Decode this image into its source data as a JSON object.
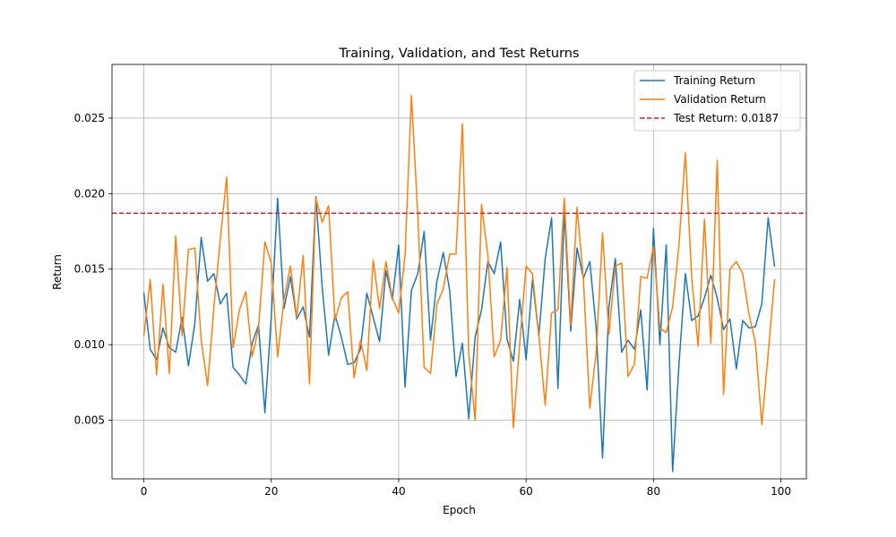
{
  "chart_data": {
    "type": "line",
    "title": "Training, Validation, and Test Returns",
    "xlabel": "Epoch",
    "ylabel": "Return",
    "xlim": [
      -5,
      104
    ],
    "ylim": [
      0.00112,
      0.02855
    ],
    "xticks": [
      0,
      20,
      40,
      60,
      80,
      100
    ],
    "xtick_labels": [
      "0",
      "20",
      "40",
      "60",
      "80",
      "100"
    ],
    "yticks": [
      0.005,
      0.01,
      0.015,
      0.02,
      0.025
    ],
    "ytick_labels": [
      "0.005",
      "0.010",
      "0.015",
      "0.020",
      "0.025"
    ],
    "grid": true,
    "legend_position": "top-right",
    "series": [
      {
        "name": "Training Return",
        "color": "#1f77b4",
        "style": "solid",
        "values": [
          0.0134,
          0.0097,
          0.009,
          0.0111,
          0.0098,
          0.0095,
          0.0118,
          0.0086,
          0.0114,
          0.0171,
          0.0142,
          0.0147,
          0.0127,
          0.0134,
          0.0085,
          0.008,
          0.0074,
          0.0101,
          0.0113,
          0.0055,
          0.0118,
          0.0197,
          0.0124,
          0.0145,
          0.0117,
          0.0125,
          0.0105,
          0.0198,
          0.0138,
          0.0093,
          0.012,
          0.0105,
          0.0087,
          0.0088,
          0.0097,
          0.0134,
          0.0118,
          0.0102,
          0.0149,
          0.013,
          0.0166,
          0.0072,
          0.0136,
          0.0147,
          0.0175,
          0.0103,
          0.0142,
          0.0161,
          0.0136,
          0.0079,
          0.0101,
          0.0051,
          0.0105,
          0.0123,
          0.0155,
          0.0147,
          0.0168,
          0.0104,
          0.0089,
          0.013,
          0.009,
          0.0143,
          0.0106,
          0.0157,
          0.0184,
          0.0071,
          0.0188,
          0.0109,
          0.0164,
          0.0144,
          0.0155,
          0.0111,
          0.0025,
          0.0125,
          0.0157,
          0.0095,
          0.0103,
          0.0097,
          0.0123,
          0.007,
          0.0177,
          0.01,
          0.0166,
          0.0016,
          0.0087,
          0.0147,
          0.0116,
          0.0119,
          0.0131,
          0.0146,
          0.0131,
          0.011,
          0.0117,
          0.0084,
          0.0116,
          0.0111,
          0.0112,
          0.0127,
          0.0184,
          0.0152
        ]
      },
      {
        "name": "Validation Return",
        "color": "#ff7f0e",
        "style": "solid",
        "values": [
          0.0106,
          0.0143,
          0.008,
          0.014,
          0.0081,
          0.0172,
          0.0106,
          0.0163,
          0.0164,
          0.0103,
          0.0073,
          0.0125,
          0.017,
          0.0211,
          0.0098,
          0.0123,
          0.0135,
          0.0092,
          0.0111,
          0.0168,
          0.0154,
          0.0092,
          0.013,
          0.0152,
          0.0118,
          0.0159,
          0.0074,
          0.0197,
          0.0181,
          0.0192,
          0.0116,
          0.0131,
          0.0135,
          0.0078,
          0.0103,
          0.0083,
          0.0156,
          0.0124,
          0.0155,
          0.0131,
          0.0121,
          0.0159,
          0.0265,
          0.0186,
          0.0085,
          0.0081,
          0.0127,
          0.0137,
          0.016,
          0.016,
          0.0246,
          0.0094,
          0.005,
          0.0193,
          0.0159,
          0.0092,
          0.0103,
          0.0151,
          0.0045,
          0.0101,
          0.0152,
          0.0147,
          0.0106,
          0.006,
          0.0121,
          0.0123,
          0.0197,
          0.0113,
          0.0191,
          0.0143,
          0.0058,
          0.0095,
          0.0174,
          0.0107,
          0.0152,
          0.0154,
          0.0079,
          0.0087,
          0.0145,
          0.0144,
          0.0165,
          0.0111,
          0.0108,
          0.0125,
          0.0166,
          0.0227,
          0.0144,
          0.0099,
          0.0183,
          0.0101,
          0.0222,
          0.0067,
          0.015,
          0.0155,
          0.0147,
          0.012,
          0.0101,
          0.0047,
          0.0094,
          0.0143
        ]
      }
    ],
    "reference_lines": [
      {
        "name": "Test Return: 0.0187",
        "value": 0.0187,
        "color": "#d62728",
        "style": "dashed"
      }
    ]
  }
}
